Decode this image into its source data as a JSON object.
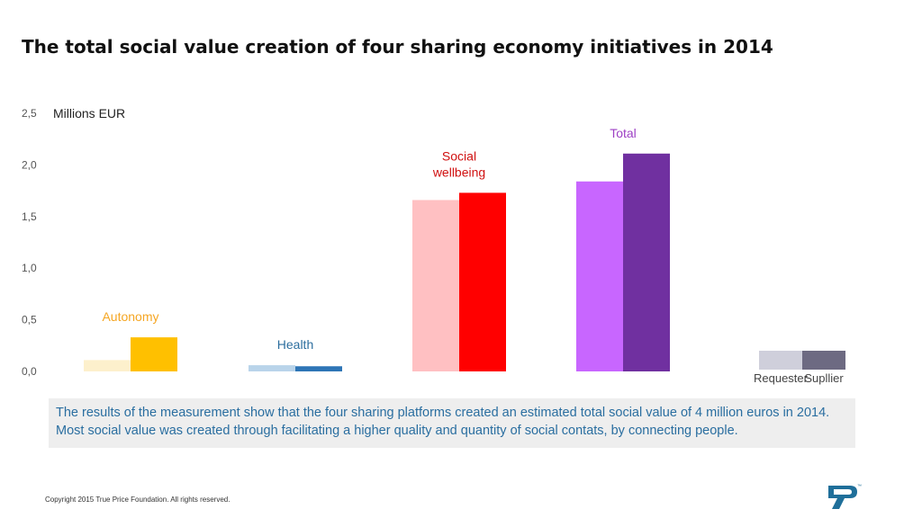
{
  "header": {
    "title": "The total social value creation of four sharing economy initiatives in 2014"
  },
  "chart_data": {
    "type": "bar",
    "ylabel": "Millions EUR",
    "ylim": [
      0,
      2.5
    ],
    "y_ticks": [
      "0,0",
      "0,5",
      "1,0",
      "1,5",
      "2,0",
      "2,5"
    ],
    "grid": false,
    "legend_position": "bottom-right",
    "categories": [
      {
        "label": "Autonomy",
        "label_lines": [
          "Autonomy"
        ],
        "color": "#f5a623"
      },
      {
        "label": "Health",
        "label_lines": [
          "Health"
        ],
        "color": "#2c6e9e"
      },
      {
        "label": "Social wellbeing",
        "label_lines": [
          "Social",
          "wellbeing"
        ],
        "color": "#d01010"
      },
      {
        "label": "Total",
        "label_lines": [
          "Total"
        ],
        "color": "#9d3fc4"
      }
    ],
    "series": [
      {
        "name": "Requester",
        "values": [
          0.11,
          0.06,
          1.66,
          1.84
        ],
        "colors": [
          "#fdf0cc",
          "#b9d4ea",
          "#ffc0c2",
          "#c866ff"
        ],
        "legend_color": "#cfcfdb"
      },
      {
        "name": "Supllier",
        "values": [
          0.33,
          0.05,
          1.73,
          2.11
        ],
        "colors": [
          "#ffc000",
          "#2e75b6",
          "#ff0000",
          "#7030a0"
        ],
        "legend_color": "#6d6a82"
      }
    ]
  },
  "footer": {
    "summary": "The results of the measurement show that the four sharing platforms created an estimated total social value of 4 million euros in 2014. Most social value was created through facilitating a higher quality and quantity of social contats, by connecting people.",
    "copyright": "Copyright 2015 True Price Foundation. All rights reserved.",
    "logo_icon": "true-price-logo-icon"
  }
}
